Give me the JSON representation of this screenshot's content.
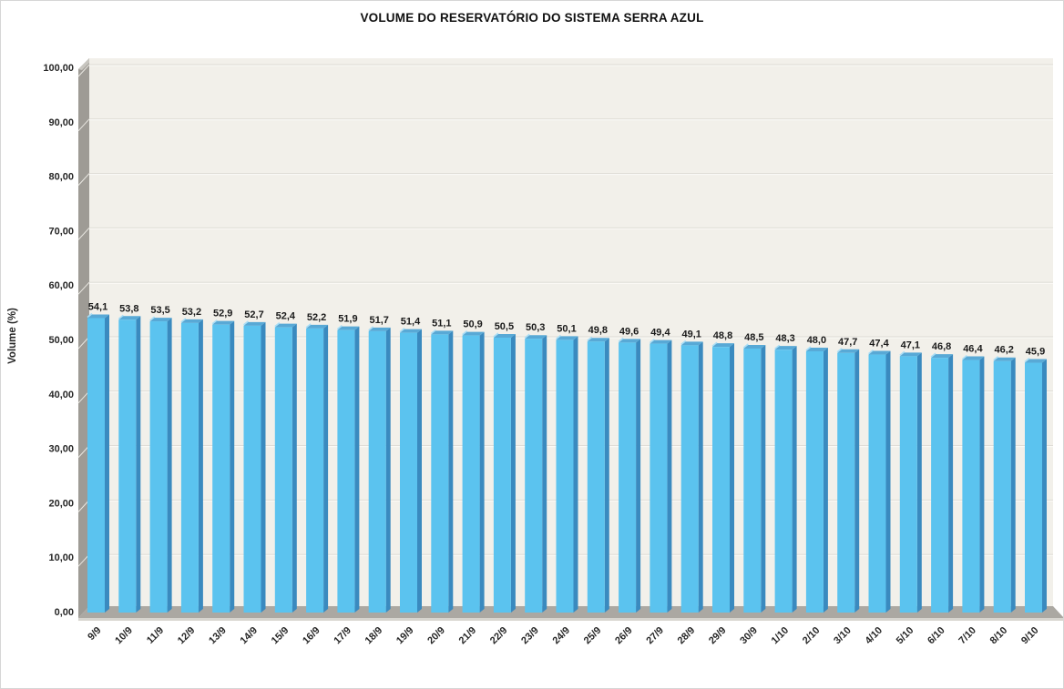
{
  "chart": {
    "title": "VOLUME DO RESERVATÓRIO DO SISTEMA SERRA AZUL",
    "y_axis_title": "Volume (%)"
  },
  "chart_data": {
    "type": "bar",
    "style": "3d-column",
    "title": "VOLUME DO RESERVATÓRIO DO SISTEMA SERRA AZUL",
    "xlabel": "",
    "ylabel": "Volume (%)",
    "ylim": [
      0,
      100
    ],
    "y_tick_step": 10,
    "y_tick_labels": [
      "100,00",
      "90,00",
      "80,00",
      "70,00",
      "60,00",
      "50,00",
      "40,00",
      "30,00",
      "20,00",
      "10,00",
      "0,00"
    ],
    "grid": "horizontal",
    "legend": "none",
    "categories": [
      "9/9",
      "10/9",
      "11/9",
      "12/9",
      "13/9",
      "14/9",
      "15/9",
      "16/9",
      "17/9",
      "18/9",
      "19/9",
      "20/9",
      "21/9",
      "22/9",
      "23/9",
      "24/9",
      "25/9",
      "26/9",
      "27/9",
      "28/9",
      "29/9",
      "30/9",
      "1/10",
      "2/10",
      "3/10",
      "4/10",
      "5/10",
      "6/10",
      "7/10",
      "8/10",
      "9/10"
    ],
    "values": [
      54.1,
      53.8,
      53.5,
      53.2,
      52.9,
      52.7,
      52.4,
      52.2,
      51.9,
      51.7,
      51.4,
      51.1,
      50.9,
      50.5,
      50.3,
      50.1,
      49.8,
      49.6,
      49.4,
      49.1,
      48.8,
      48.5,
      48.3,
      48.0,
      47.7,
      47.4,
      47.1,
      46.8,
      46.4,
      46.2,
      45.9
    ],
    "value_labels": [
      "54,1",
      "53,8",
      "53,5",
      "53,2",
      "52,9",
      "52,7",
      "52,4",
      "52,2",
      "51,9",
      "51,7",
      "51,4",
      "51,1",
      "50,9",
      "50,5",
      "50,3",
      "50,1",
      "49,8",
      "49,6",
      "49,4",
      "49,1",
      "48,8",
      "48,5",
      "48,3",
      "48,0",
      "47,7",
      "47,4",
      "47,1",
      "46,8",
      "46,4",
      "46,2",
      "45,9"
    ],
    "colors": {
      "bar_front": "#5BC3EF",
      "bar_side": "#3A8ABF",
      "bar_top": "#58A9D6",
      "bar_top_edge": "#A9DEF6",
      "plot_background": "#F2F0EA",
      "gridline": "#DCDAD3",
      "gridline_highlight": "#FCFBF8",
      "wall": "#9E9B95",
      "wall_bevel": "#C8C6C0",
      "floor_top": "#ABA8A2",
      "floor_front": "#D7D5CF",
      "label_text": "#1A1A1A",
      "axis_text": "#262626"
    }
  }
}
